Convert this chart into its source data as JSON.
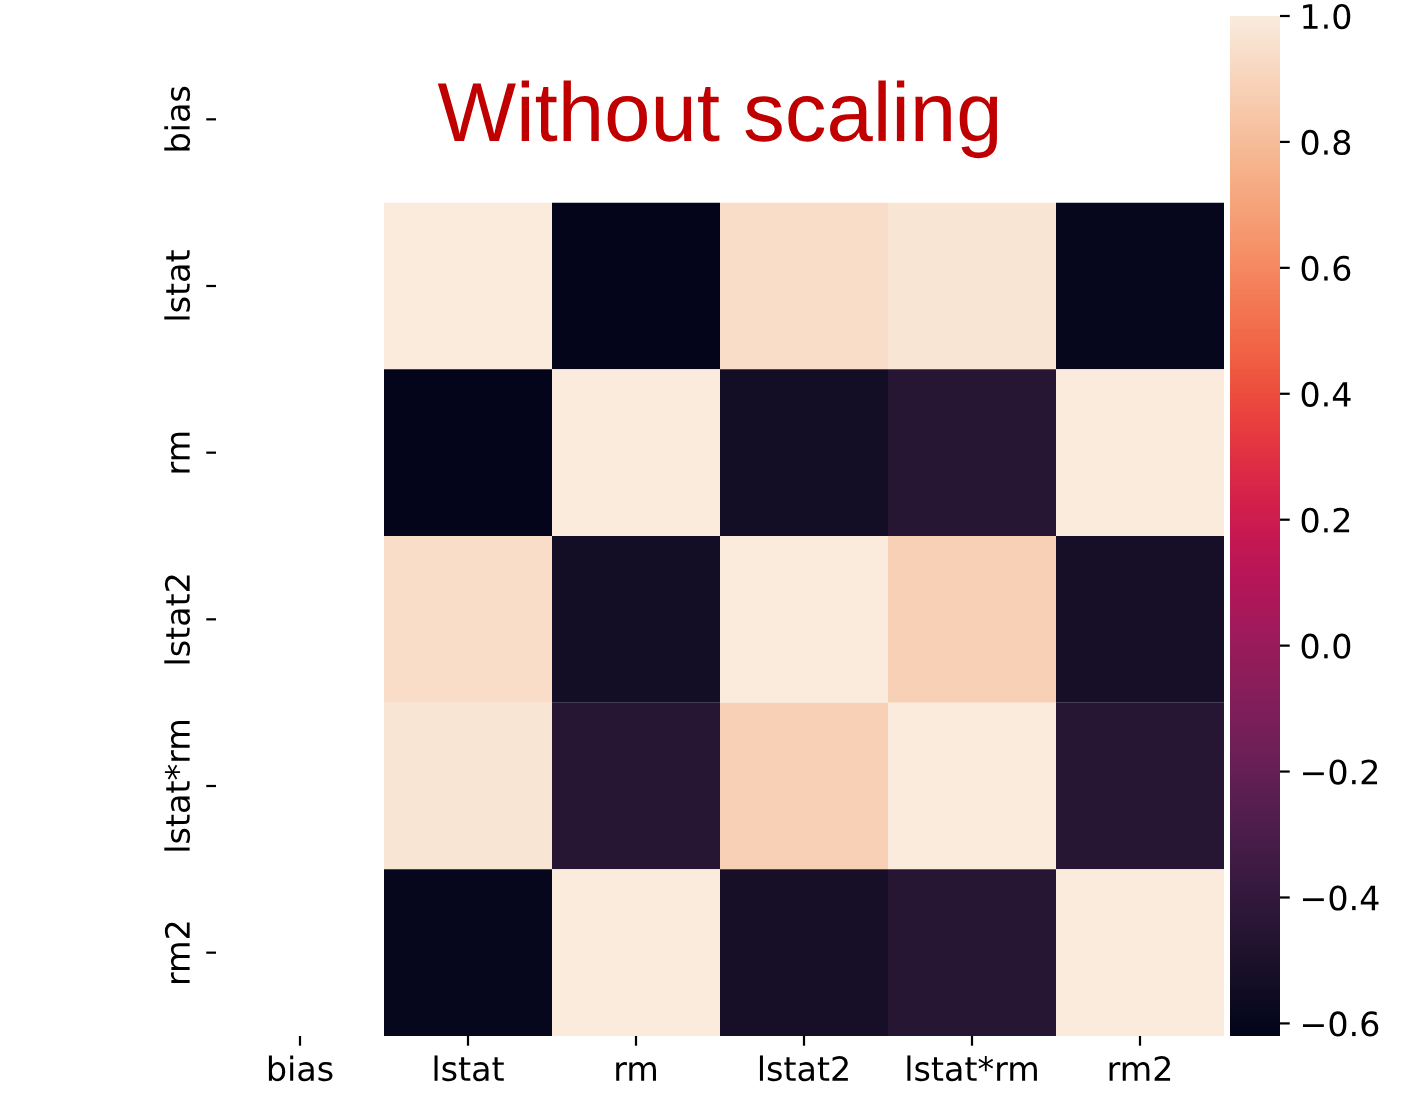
{
  "chart_data": {
    "type": "heatmap",
    "title": "Without scaling",
    "categories": [
      "bias",
      "lstat",
      "rm",
      "lstat2",
      "lstat*rm",
      "rm2"
    ],
    "y_categories": [
      "bias",
      "lstat",
      "rm",
      "lstat2",
      "lstat*rm",
      "rm2"
    ],
    "cells": [
      [
        null,
        null,
        null,
        null,
        null,
        null
      ],
      [
        null,
        1.0,
        -0.61,
        0.94,
        0.97,
        -0.6
      ],
      [
        null,
        -0.61,
        1.0,
        -0.54,
        -0.45,
        1.0
      ],
      [
        null,
        0.94,
        -0.54,
        1.0,
        0.88,
        -0.52
      ],
      [
        null,
        0.97,
        -0.45,
        0.88,
        1.0,
        -0.45
      ],
      [
        null,
        -0.6,
        1.0,
        -0.52,
        -0.45,
        1.0
      ]
    ],
    "clim": [
      -0.62,
      1.0
    ],
    "cticks": [
      -0.6,
      -0.4,
      -0.2,
      {
        "value": 0,
        "label": "0.0"
      },
      0.2,
      0.4,
      0.6,
      0.8,
      {
        "value": 1,
        "label": "1.0"
      }
    ]
  }
}
